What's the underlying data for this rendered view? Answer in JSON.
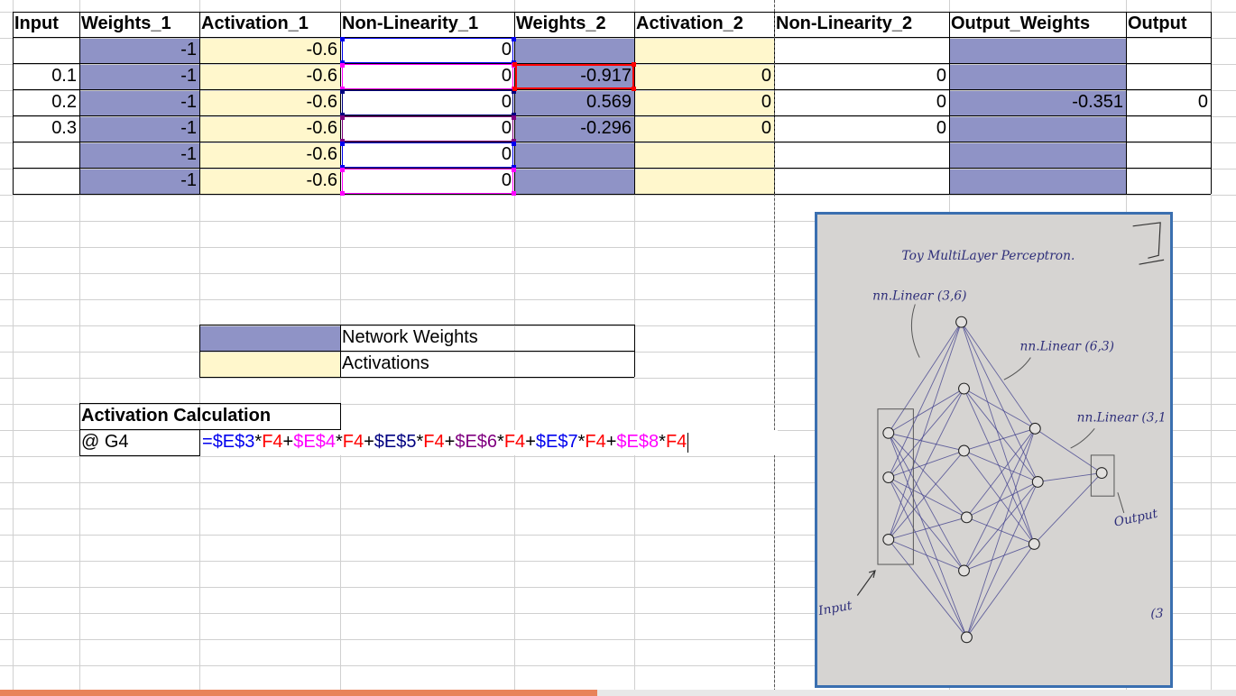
{
  "headers": [
    "Input",
    "Weights_1",
    "Activation_1",
    "Non-Linearity_1",
    "Weights_2",
    "Activation_2",
    "Non-Linearity_2",
    "Output_Weights",
    "Output"
  ],
  "rows": [
    {
      "input": "",
      "w1": "-1",
      "a1": "-0.6",
      "nl1": "0",
      "w2": "",
      "a2": "",
      "nl2": "",
      "ow": "",
      "out": ""
    },
    {
      "input": "0.1",
      "w1": "-1",
      "a1": "-0.6",
      "nl1": "0",
      "w2": "-0.917",
      "a2": "0",
      "nl2": "0",
      "ow": "",
      "out": ""
    },
    {
      "input": "0.2",
      "w1": "-1",
      "a1": "-0.6",
      "nl1": "0",
      "w2": "0.569",
      "a2": "0",
      "nl2": "0",
      "ow": "-0.351",
      "out": "0"
    },
    {
      "input": "0.3",
      "w1": "-1",
      "a1": "-0.6",
      "nl1": "0",
      "w2": "-0.296",
      "a2": "0",
      "nl2": "0",
      "ow": "",
      "out": ""
    },
    {
      "input": "",
      "w1": "-1",
      "a1": "-0.6",
      "nl1": "0",
      "w2": "",
      "a2": "",
      "nl2": "",
      "ow": "",
      "out": ""
    },
    {
      "input": "",
      "w1": "-1",
      "a1": "-0.6",
      "nl1": "0",
      "w2": "",
      "a2": "",
      "nl2": "",
      "ow": "",
      "out": ""
    }
  ],
  "legend": {
    "weights": "Network Weights",
    "activations": "Activations"
  },
  "calc": {
    "title": "Activation Calculation",
    "cell_ref": "@ G4"
  },
  "formula_parts": [
    {
      "t": "=",
      "c": "#0000ee"
    },
    {
      "t": "$E$3",
      "c": "#0000ee"
    },
    {
      "t": "*",
      "c": "#000"
    },
    {
      "t": "F4",
      "c": "#ff0000"
    },
    {
      "t": "+",
      "c": "#000"
    },
    {
      "t": "$E$4",
      "c": "#ff00ff"
    },
    {
      "t": "*",
      "c": "#000"
    },
    {
      "t": "F4",
      "c": "#ff0000"
    },
    {
      "t": "+",
      "c": "#000"
    },
    {
      "t": "$E$5",
      "c": "#000080"
    },
    {
      "t": "*",
      "c": "#000"
    },
    {
      "t": "F4",
      "c": "#ff0000"
    },
    {
      "t": "+",
      "c": "#000"
    },
    {
      "t": "$E$6",
      "c": "#800080"
    },
    {
      "t": "*",
      "c": "#000"
    },
    {
      "t": "F4",
      "c": "#ff0000"
    },
    {
      "t": "+",
      "c": "#000"
    },
    {
      "t": "$E$7",
      "c": "#0000ee"
    },
    {
      "t": "*",
      "c": "#000"
    },
    {
      "t": "F4",
      "c": "#ff0000"
    },
    {
      "t": "+",
      "c": "#000"
    },
    {
      "t": "$E$8",
      "c": "#ff00ff"
    },
    {
      "t": "*",
      "c": "#000"
    },
    {
      "t": "F4",
      "c": "#ff0000"
    }
  ],
  "photo": {
    "title": "Toy MultiLayer Perceptron.",
    "layer1": "nn.Linear (3,6)",
    "layer2": "nn.Linear (6,3)",
    "layer3": "nn.Linear (3,1",
    "input_label": "Input",
    "output_label": "Output",
    "corner_mark": "(3"
  },
  "colors": {
    "weights": "#8f93c6",
    "activations": "#fff7cc",
    "scroll_thumb": "#e8835a"
  }
}
